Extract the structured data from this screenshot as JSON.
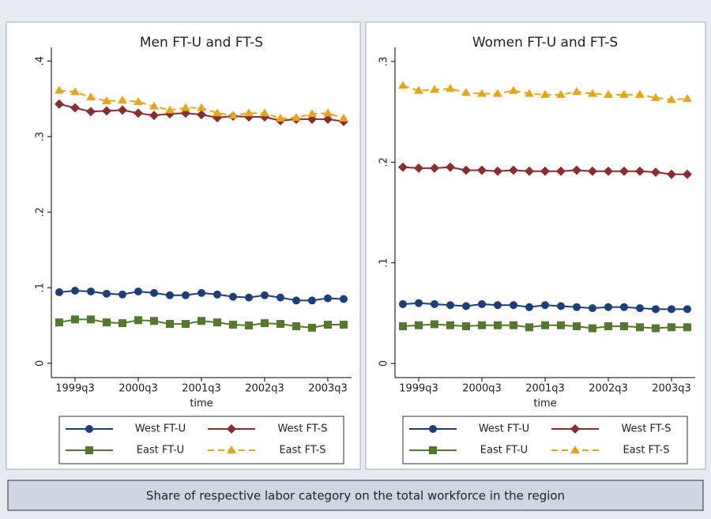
{
  "chart_data": [
    {
      "type": "line",
      "title": "Men FT-U and FT-S",
      "xlabel": "time",
      "categories": [
        "1999q2",
        "1999q3",
        "1999q4",
        "2000q1",
        "2000q2",
        "2000q3",
        "2000q4",
        "2001q1",
        "2001q2",
        "2001q3",
        "2001q4",
        "2002q1",
        "2002q2",
        "2002q3",
        "2002q4",
        "2003q1",
        "2003q2",
        "2003q3",
        "2003q4"
      ],
      "xticks": [
        "1999q3",
        "2000q3",
        "2001q3",
        "2002q3",
        "2003q3"
      ],
      "ylim": [
        -0.019,
        0.418
      ],
      "yticks": [
        0,
        {
          "value": 0.1,
          "label": ".1"
        },
        {
          "value": 0.2,
          "label": ".2"
        },
        {
          "value": 0.3,
          "label": ".3"
        },
        {
          "value": 0.4,
          "label": ".4"
        }
      ],
      "series": [
        {
          "name": "West FT-U",
          "color": "#1c3f7c",
          "marker": "circle",
          "dash": false,
          "values": [
            0.094,
            0.096,
            0.095,
            0.092,
            0.091,
            0.095,
            0.093,
            0.09,
            0.09,
            0.093,
            0.091,
            0.088,
            0.087,
            0.09,
            0.087,
            0.083,
            0.083,
            0.086,
            0.085
          ]
        },
        {
          "name": "West FT-S",
          "color": "#8c2d2d",
          "marker": "diamond",
          "dash": false,
          "values": [
            0.343,
            0.338,
            0.333,
            0.334,
            0.335,
            0.331,
            0.328,
            0.33,
            0.331,
            0.329,
            0.325,
            0.327,
            0.326,
            0.326,
            0.321,
            0.323,
            0.323,
            0.323,
            0.32
          ]
        },
        {
          "name": "East FT-U",
          "color": "#527a2a",
          "marker": "square",
          "dash": false,
          "values": [
            0.054,
            0.058,
            0.058,
            0.054,
            0.053,
            0.057,
            0.056,
            0.052,
            0.052,
            0.056,
            0.054,
            0.051,
            0.05,
            0.053,
            0.052,
            0.049,
            0.047,
            0.051,
            0.051
          ]
        },
        {
          "name": "East FT-S",
          "color": "#e9a519",
          "marker": "triangle",
          "dash": true,
          "values": [
            0.361,
            0.359,
            0.352,
            0.347,
            0.348,
            0.346,
            0.34,
            0.335,
            0.338,
            0.338,
            0.331,
            0.328,
            0.331,
            0.331,
            0.324,
            0.325,
            0.33,
            0.331,
            0.324
          ]
        }
      ]
    },
    {
      "type": "line",
      "title": "Women FT-U and FT-S",
      "xlabel": "time",
      "categories": [
        "1999q2",
        "1999q3",
        "1999q4",
        "2000q1",
        "2000q2",
        "2000q3",
        "2000q4",
        "2001q1",
        "2001q2",
        "2001q3",
        "2001q4",
        "2002q1",
        "2002q2",
        "2002q3",
        "2002q4",
        "2003q1",
        "2003q2",
        "2003q3",
        "2003q4"
      ],
      "xticks": [
        "1999q3",
        "2000q3",
        "2001q3",
        "2002q3",
        "2003q3"
      ],
      "ylim": [
        -0.014,
        0.314
      ],
      "yticks": [
        0,
        {
          "value": 0.1,
          "label": ".1"
        },
        {
          "value": 0.2,
          "label": ".2"
        },
        {
          "value": 0.3,
          "label": ".3"
        }
      ],
      "series": [
        {
          "name": "West FT-U",
          "color": "#1c3f7c",
          "marker": "circle",
          "dash": false,
          "values": [
            0.059,
            0.06,
            0.059,
            0.058,
            0.057,
            0.059,
            0.058,
            0.058,
            0.056,
            0.058,
            0.057,
            0.056,
            0.055,
            0.056,
            0.056,
            0.055,
            0.054,
            0.054,
            0.054
          ]
        },
        {
          "name": "West FT-S",
          "color": "#8c2d2d",
          "marker": "diamond",
          "dash": false,
          "values": [
            0.195,
            0.194,
            0.194,
            0.195,
            0.192,
            0.192,
            0.191,
            0.192,
            0.191,
            0.191,
            0.191,
            0.192,
            0.191,
            0.191,
            0.191,
            0.191,
            0.19,
            0.188,
            0.188
          ]
        },
        {
          "name": "East FT-U",
          "color": "#527a2a",
          "marker": "square",
          "dash": false,
          "values": [
            0.037,
            0.038,
            0.039,
            0.038,
            0.037,
            0.038,
            0.038,
            0.038,
            0.036,
            0.038,
            0.038,
            0.037,
            0.035,
            0.037,
            0.037,
            0.036,
            0.035,
            0.036,
            0.036
          ]
        },
        {
          "name": "East FT-S",
          "color": "#e9a519",
          "marker": "triangle",
          "dash": true,
          "values": [
            0.276,
            0.271,
            0.272,
            0.273,
            0.269,
            0.268,
            0.268,
            0.271,
            0.268,
            0.267,
            0.267,
            0.27,
            0.268,
            0.267,
            0.267,
            0.267,
            0.264,
            0.262,
            0.263
          ]
        }
      ]
    }
  ],
  "caption": "Share of respective labor category on the total workforce in the region"
}
